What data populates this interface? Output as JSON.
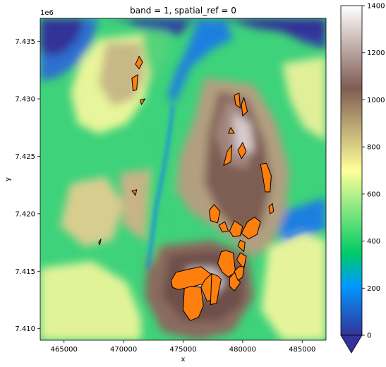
{
  "chart_data": {
    "type": "heatmap",
    "title": "band = 1, spatial_ref = 0",
    "xlabel": "x",
    "ylabel": "y",
    "y_offset_label": "1e6",
    "xlim": [
      463000,
      487000
    ],
    "ylim": [
      7409000,
      7437000
    ],
    "x_ticks": [
      465000,
      470000,
      475000,
      480000,
      485000
    ],
    "x_tick_labels": [
      "465000",
      "470000",
      "475000",
      "480000",
      "485000"
    ],
    "y_ticks": [
      7410000,
      7415000,
      7420000,
      7425000,
      7430000,
      7435000
    ],
    "y_tick_labels": [
      "7.410",
      "7.415",
      "7.420",
      "7.425",
      "7.430",
      "7.435"
    ],
    "colorbar": {
      "colormap": "terrain",
      "range": [
        0,
        1400
      ],
      "ticks": [
        0,
        200,
        400,
        600,
        800,
        1000,
        1200,
        1400
      ],
      "tick_labels": [
        "0",
        "200",
        "400",
        "600",
        "800",
        "1000",
        "1200",
        "1400"
      ],
      "extend": "min"
    },
    "overlay": {
      "description": "orange polygons with black outlines",
      "fill_color": "#ff7f0e",
      "edge_color": "#000000",
      "polygons": [
        [
          [
            471300,
            7432600
          ],
          [
            471600,
            7433200
          ],
          [
            471300,
            7433700
          ],
          [
            471000,
            7433000
          ]
        ],
        [
          [
            470700,
            7431800
          ],
          [
            471200,
            7432100
          ],
          [
            471100,
            7430800
          ],
          [
            470800,
            7430700
          ]
        ],
        [
          [
            471400,
            7429900
          ],
          [
            471800,
            7430000
          ],
          [
            471500,
            7429500
          ]
        ],
        [
          [
            479300,
            7430300
          ],
          [
            479700,
            7430500
          ],
          [
            479800,
            7429200
          ],
          [
            479400,
            7429500
          ]
        ],
        [
          [
            479900,
            7429500
          ],
          [
            480100,
            7430100
          ],
          [
            480400,
            7428900
          ],
          [
            480000,
            7428500
          ]
        ],
        [
          [
            478800,
            7427000
          ],
          [
            479000,
            7427500
          ],
          [
            479300,
            7427000
          ]
        ],
        [
          [
            478700,
            7425400
          ],
          [
            479100,
            7426000
          ],
          [
            479000,
            7424500
          ],
          [
            478400,
            7424200
          ]
        ],
        [
          [
            479600,
            7425500
          ],
          [
            480000,
            7426200
          ],
          [
            480300,
            7425400
          ],
          [
            479900,
            7424800
          ]
        ],
        [
          [
            481500,
            7424300
          ],
          [
            482000,
            7424400
          ],
          [
            482400,
            7423300
          ],
          [
            482300,
            7421900
          ],
          [
            481900,
            7421900
          ],
          [
            481700,
            7423200
          ]
        ],
        [
          [
            482200,
            7420600
          ],
          [
            482500,
            7420900
          ],
          [
            482600,
            7420200
          ],
          [
            482300,
            7420000
          ]
        ],
        [
          [
            477200,
            7420300
          ],
          [
            477600,
            7420800
          ],
          [
            478100,
            7420200
          ],
          [
            477900,
            7419200
          ],
          [
            477300,
            7419400
          ]
        ],
        [
          [
            478000,
            7419000
          ],
          [
            478500,
            7419300
          ],
          [
            478800,
            7418500
          ],
          [
            478300,
            7418400
          ]
        ],
        [
          [
            478900,
            7418500
          ],
          [
            479300,
            7419400
          ],
          [
            480000,
            7418900
          ],
          [
            479800,
            7418100
          ],
          [
            479200,
            7418000
          ]
        ],
        [
          [
            479900,
            7418300
          ],
          [
            480400,
            7419300
          ],
          [
            481000,
            7419700
          ],
          [
            481500,
            7419300
          ],
          [
            481200,
            7418200
          ],
          [
            480500,
            7417800
          ]
        ],
        [
          [
            479600,
            7417200
          ],
          [
            479800,
            7417700
          ],
          [
            480200,
            7417500
          ],
          [
            480100,
            7416700
          ]
        ],
        [
          [
            479500,
            7416000
          ],
          [
            479800,
            7416600
          ],
          [
            480300,
            7416300
          ],
          [
            480100,
            7415200
          ]
        ],
        [
          [
            478300,
            7416400
          ],
          [
            478800,
            7416500
          ],
          [
            478900,
            7415600
          ],
          [
            478400,
            7415500
          ]
        ],
        [
          [
            474000,
            7414200
          ],
          [
            474400,
            7414900
          ],
          [
            475600,
            7415200
          ],
          [
            476500,
            7415400
          ],
          [
            477400,
            7414700
          ],
          [
            477200,
            7413900
          ],
          [
            476700,
            7413900
          ],
          [
            475500,
            7413600
          ],
          [
            474600,
            7413400
          ],
          [
            474100,
            7413600
          ]
        ],
        [
          [
            475100,
            7413500
          ],
          [
            475700,
            7413700
          ],
          [
            476500,
            7413600
          ],
          [
            476700,
            7412000
          ],
          [
            476300,
            7411000
          ],
          [
            475600,
            7410700
          ],
          [
            475000,
            7411600
          ]
        ],
        [
          [
            476500,
            7413600
          ],
          [
            476800,
            7414200
          ],
          [
            477400,
            7414800
          ],
          [
            477800,
            7414500
          ],
          [
            477900,
            7413000
          ],
          [
            477500,
            7412500
          ],
          [
            477000,
            7412400
          ]
        ],
        [
          [
            477400,
            7414800
          ],
          [
            477900,
            7414600
          ],
          [
            478200,
            7414300
          ],
          [
            478000,
            7413300
          ],
          [
            477800,
            7412200
          ],
          [
            477300,
            7412100
          ]
        ],
        [
          [
            477900,
            7415700
          ],
          [
            478200,
            7416700
          ],
          [
            478600,
            7416800
          ],
          [
            479200,
            7416600
          ],
          [
            479400,
            7414900
          ],
          [
            478800,
            7414500
          ],
          [
            478300,
            7414900
          ]
        ],
        [
          [
            478900,
            7414400
          ],
          [
            479300,
            7414900
          ],
          [
            479800,
            7414000
          ],
          [
            479300,
            7413300
          ],
          [
            478900,
            7413700
          ]
        ],
        [
          [
            479300,
            7415000
          ],
          [
            479700,
            7415400
          ],
          [
            480100,
            7415400
          ],
          [
            480000,
            7414500
          ],
          [
            479600,
            7414200
          ]
        ],
        [
          [
            470700,
            7422000
          ],
          [
            471100,
            7422100
          ],
          [
            471000,
            7421600
          ]
        ],
        [
          [
            467900,
            7417500
          ],
          [
            468100,
            7417800
          ],
          [
            468000,
            7417300
          ]
        ]
      ]
    }
  }
}
